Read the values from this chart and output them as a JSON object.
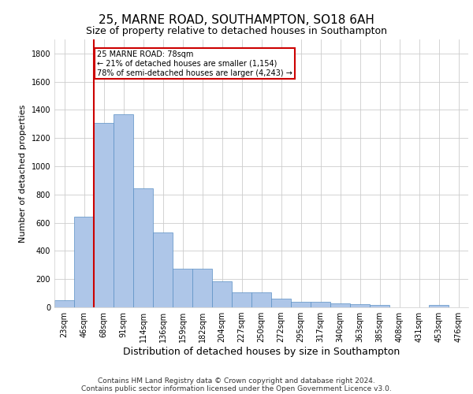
{
  "title1": "25, MARNE ROAD, SOUTHAMPTON, SO18 6AH",
  "title2": "Size of property relative to detached houses in Southampton",
  "xlabel": "Distribution of detached houses by size in Southampton",
  "ylabel": "Number of detached properties",
  "categories": [
    "23sqm",
    "46sqm",
    "68sqm",
    "91sqm",
    "114sqm",
    "136sqm",
    "159sqm",
    "182sqm",
    "204sqm",
    "227sqm",
    "250sqm",
    "272sqm",
    "295sqm",
    "317sqm",
    "340sqm",
    "363sqm",
    "385sqm",
    "408sqm",
    "431sqm",
    "453sqm",
    "476sqm"
  ],
  "values": [
    50,
    640,
    1310,
    1370,
    845,
    530,
    275,
    275,
    185,
    105,
    105,
    60,
    40,
    40,
    30,
    25,
    15,
    0,
    0,
    15,
    0
  ],
  "bar_color": "#aec6e8",
  "bar_edge_color": "#5a8fc4",
  "grid_color": "#cccccc",
  "property_label": "25 MARNE ROAD: 78sqm",
  "annotation_line1": "← 21% of detached houses are smaller (1,154)",
  "annotation_line2": "78% of semi-detached houses are larger (4,243) →",
  "vline_color": "#cc0000",
  "vline_bin_index": 2,
  "box_facecolor": "white",
  "box_edgecolor": "#cc0000",
  "ylim": [
    0,
    1900
  ],
  "yticks": [
    0,
    200,
    400,
    600,
    800,
    1000,
    1200,
    1400,
    1600,
    1800
  ],
  "footer1": "Contains HM Land Registry data © Crown copyright and database right 2024.",
  "footer2": "Contains public sector information licensed under the Open Government Licence v3.0.",
  "title1_fontsize": 11,
  "title2_fontsize": 9,
  "axis_fontsize": 8,
  "tick_fontsize": 7,
  "footer_fontsize": 6.5
}
